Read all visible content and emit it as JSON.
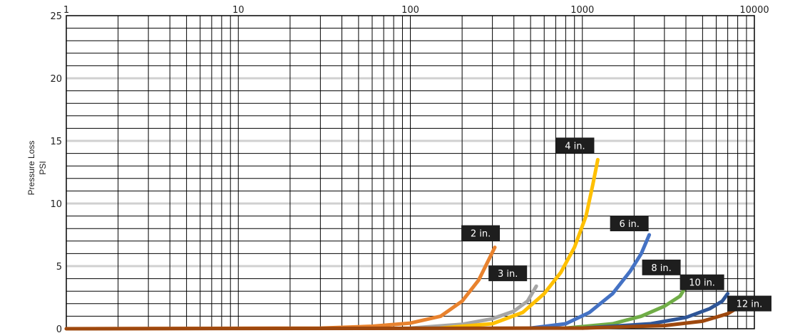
{
  "chart_data": {
    "type": "line",
    "title": "",
    "xlabel": "",
    "ylabel": [
      "Pressure Loss",
      "PSI"
    ],
    "x_scale": "log",
    "xlim": [
      1,
      10000
    ],
    "ylim": [
      0,
      25
    ],
    "x_ticks": [
      "1",
      "10",
      "100",
      "1000",
      "10000"
    ],
    "y_ticks": [
      "0",
      "5",
      "10",
      "15",
      "20",
      "25"
    ],
    "grid": true,
    "series": [
      {
        "name": "2 in.",
        "color": "#e8822e",
        "points": [
          [
            1,
            0
          ],
          [
            30,
            0.05
          ],
          [
            60,
            0.2
          ],
          [
            100,
            0.45
          ],
          [
            150,
            1.0
          ],
          [
            200,
            2.2
          ],
          [
            250,
            3.9
          ],
          [
            310,
            6.5
          ]
        ]
      },
      {
        "name": "3 in.",
        "color": "#a6a6a6",
        "points": [
          [
            100,
            0.05
          ],
          [
            200,
            0.35
          ],
          [
            300,
            0.8
          ],
          [
            400,
            1.4
          ],
          [
            480,
            2.2
          ],
          [
            540,
            3.4
          ]
        ]
      },
      {
        "name": "4 in.",
        "color": "#ffc000",
        "points": [
          [
            150,
            0.05
          ],
          [
            300,
            0.4
          ],
          [
            450,
            1.3
          ],
          [
            600,
            2.8
          ],
          [
            750,
            4.5
          ],
          [
            900,
            6.5
          ],
          [
            1050,
            9.0
          ],
          [
            1150,
            11.5
          ],
          [
            1230,
            13.5
          ]
        ]
      },
      {
        "name": "6 in.",
        "color": "#4472c4",
        "points": [
          [
            500,
            0.05
          ],
          [
            800,
            0.4
          ],
          [
            1100,
            1.3
          ],
          [
            1500,
            2.8
          ],
          [
            1900,
            4.6
          ],
          [
            2200,
            6.0
          ],
          [
            2450,
            7.5
          ]
        ]
      },
      {
        "name": "8 in.",
        "color": "#70ad47",
        "points": [
          [
            800,
            0.05
          ],
          [
            1500,
            0.4
          ],
          [
            2200,
            1.0
          ],
          [
            3000,
            1.8
          ],
          [
            3700,
            2.6
          ],
          [
            4300,
            4.1
          ]
        ]
      },
      {
        "name": "10 in.",
        "color": "#2e5597",
        "points": [
          [
            1000,
            0.05
          ],
          [
            2500,
            0.4
          ],
          [
            4000,
            0.9
          ],
          [
            5500,
            1.6
          ],
          [
            6500,
            2.2
          ],
          [
            7000,
            2.8
          ]
        ]
      },
      {
        "name": "12 in.",
        "color": "#9e480e",
        "points": [
          [
            1,
            0
          ],
          [
            1000,
            0.05
          ],
          [
            3000,
            0.25
          ],
          [
            5000,
            0.6
          ],
          [
            7000,
            1.2
          ],
          [
            8500,
            1.9
          ]
        ]
      }
    ],
    "annotations": [
      {
        "series": 0,
        "text": "2 in."
      },
      {
        "series": 1,
        "text": "3 in."
      },
      {
        "series": 2,
        "text": "4 in."
      },
      {
        "series": 3,
        "text": "6 in."
      },
      {
        "series": 4,
        "text": "8 in."
      },
      {
        "series": 5,
        "text": "10 in."
      },
      {
        "series": 6,
        "text": "12 in."
      }
    ]
  }
}
